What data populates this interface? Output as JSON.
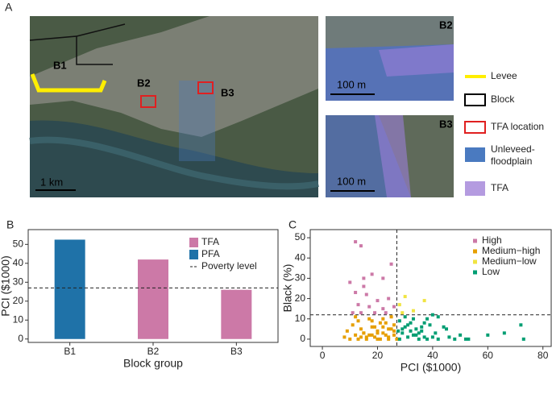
{
  "panel_a": {
    "label": "A",
    "map_labels": [
      "B1",
      "B2",
      "B3"
    ],
    "map_scale": "1 km",
    "insets": [
      {
        "title": "B2",
        "scale": "100 m"
      },
      {
        "title": "B3",
        "scale": "100 m"
      }
    ],
    "legend": [
      [
        "Levee"
      ],
      [
        "Block"
      ],
      [
        "TFA location"
      ],
      [
        "Unleveed-",
        "floodplain"
      ],
      [
        "TFA"
      ]
    ]
  },
  "chart_data": [
    {
      "type": "bar",
      "label": "B",
      "categories": [
        "B1",
        "B2",
        "B3"
      ],
      "values": [
        52.5,
        42,
        26
      ],
      "colors": [
        "#1f72a8",
        "#cc79a7",
        "#cc79a7"
      ],
      "xlabel": "Block group",
      "ylabel": "PCI ($1000)",
      "ylim": [
        -1.8,
        57.8
      ],
      "yticks": [
        0,
        10,
        20,
        30,
        40,
        50
      ],
      "hline": {
        "value": 27,
        "label": "Poverty level"
      },
      "legend": [
        {
          "name": "TFA",
          "color": "#cc79a7"
        },
        {
          "name": "PFA",
          "color": "#1f72a8"
        }
      ]
    },
    {
      "type": "scatter",
      "label": "C",
      "xlabel": "PCI ($1000)",
      "ylabel": "Black (%)",
      "xlim": [
        -4.4,
        83
      ],
      "xticks": [
        0,
        20,
        40,
        60,
        80
      ],
      "ylim": [
        -3.6,
        54
      ],
      "yticks": [
        0,
        10,
        20,
        30,
        40,
        50
      ],
      "vline": 27,
      "hline": 12,
      "series": [
        {
          "name": "High",
          "color": "#cc79a7",
          "x": [
            12,
            14,
            10,
            15,
            18,
            22,
            25,
            12,
            16,
            20,
            24,
            13,
            17,
            22,
            26,
            11,
            14,
            19,
            23,
            15
          ],
          "values": [
            48,
            46,
            28,
            30,
            32,
            30,
            37,
            23,
            22,
            19,
            20,
            17,
            16,
            15,
            16,
            13,
            13,
            13,
            13,
            26
          ]
        },
        {
          "name": "Medium−high",
          "color": "#e69f00",
          "x": [
            8,
            10,
            12,
            13,
            14,
            15,
            16,
            17,
            18,
            19,
            20,
            21,
            22,
            23,
            24,
            25,
            26,
            27,
            9,
            11,
            13,
            15,
            17,
            19,
            21,
            23,
            25,
            26,
            14,
            16,
            18,
            20,
            22,
            24,
            26,
            12,
            18,
            22,
            24,
            20
          ],
          "values": [
            1,
            0,
            2,
            0,
            1,
            3,
            0,
            2,
            6,
            1,
            4,
            0,
            3,
            8,
            1,
            5,
            2,
            0,
            4,
            7,
            9,
            3,
            10,
            6,
            8,
            2,
            11,
            4,
            5,
            1,
            9,
            3,
            6,
            0,
            7,
            11,
            2,
            10,
            5,
            0
          ]
        },
        {
          "name": "Medium−low",
          "color": "#f0e442",
          "x": [
            30,
            37,
            28,
            33,
            29
          ],
          "values": [
            21,
            19,
            17,
            14,
            13
          ]
        },
        {
          "name": "Low",
          "color": "#009e73",
          "x": [
            28,
            29,
            30,
            31,
            32,
            33,
            34,
            35,
            36,
            37,
            38,
            39,
            40,
            41,
            42,
            44,
            46,
            48,
            50,
            52,
            28,
            30,
            32,
            34,
            36,
            38,
            40,
            29,
            31,
            33,
            35,
            37,
            42,
            45,
            53,
            60,
            66,
            72,
            73,
            27.5
          ],
          "values": [
            0,
            3,
            6,
            1,
            8,
            2,
            5,
            0,
            4,
            1,
            10,
            7,
            12,
            3,
            0,
            6,
            1,
            0,
            2,
            0,
            9,
            11,
            4,
            2,
            6,
            0,
            1,
            5,
            7,
            10,
            3,
            8,
            11,
            5,
            0,
            2,
            3,
            7,
            0,
            4
          ]
        }
      ]
    }
  ]
}
